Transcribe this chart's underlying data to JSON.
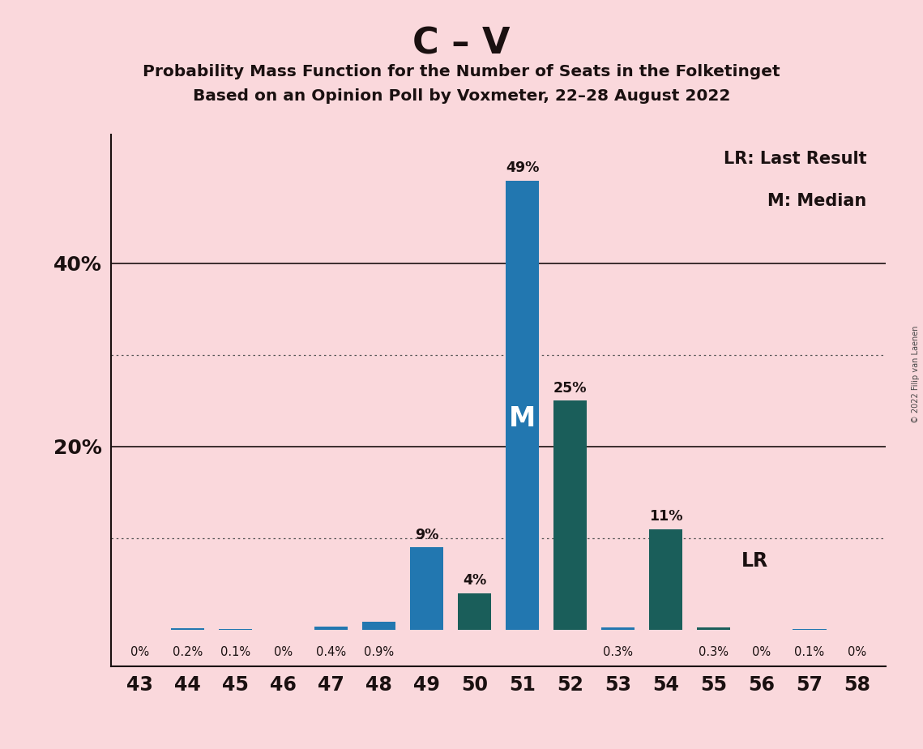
{
  "title_main": "C – V",
  "title_sub1": "Probability Mass Function for the Number of Seats in the Folketinget",
  "title_sub2": "Based on an Opinion Poll by Voxmeter, 22–28 August 2022",
  "copyright": "© 2022 Filip van Laenen",
  "categories": [
    43,
    44,
    45,
    46,
    47,
    48,
    49,
    50,
    51,
    52,
    53,
    54,
    55,
    56,
    57,
    58
  ],
  "values": [
    0.0,
    0.2,
    0.1,
    0.0,
    0.4,
    0.9,
    9.0,
    4.0,
    49.0,
    25.0,
    0.3,
    11.0,
    0.3,
    0.0,
    0.1,
    0.0
  ],
  "labels": [
    "0%",
    "0.2%",
    "0.1%",
    "0%",
    "0.4%",
    "0.9%",
    "9%",
    "4%",
    "49%",
    "25%",
    "0.3%",
    "11%",
    "0.3%",
    "0%",
    "0.1%",
    "0%"
  ],
  "blue_color": "#2277b0",
  "teal_color": "#1a5e5a",
  "bar_color_map": {
    "43": "blue",
    "44": "blue",
    "45": "blue",
    "46": "blue",
    "47": "blue",
    "48": "blue",
    "49": "blue",
    "50": "teal",
    "51": "blue",
    "52": "teal",
    "53": "blue",
    "54": "teal",
    "55": "teal",
    "56": "blue",
    "57": "blue",
    "58": "blue"
  },
  "median_seat": 51,
  "last_result_seat": 55,
  "background_color": "#fad8dc",
  "ylim_max": 54,
  "solid_yticks": [
    20,
    40
  ],
  "dotted_yticks": [
    10,
    30
  ],
  "legend_lr": "LR: Last Result",
  "legend_m": "M: Median"
}
